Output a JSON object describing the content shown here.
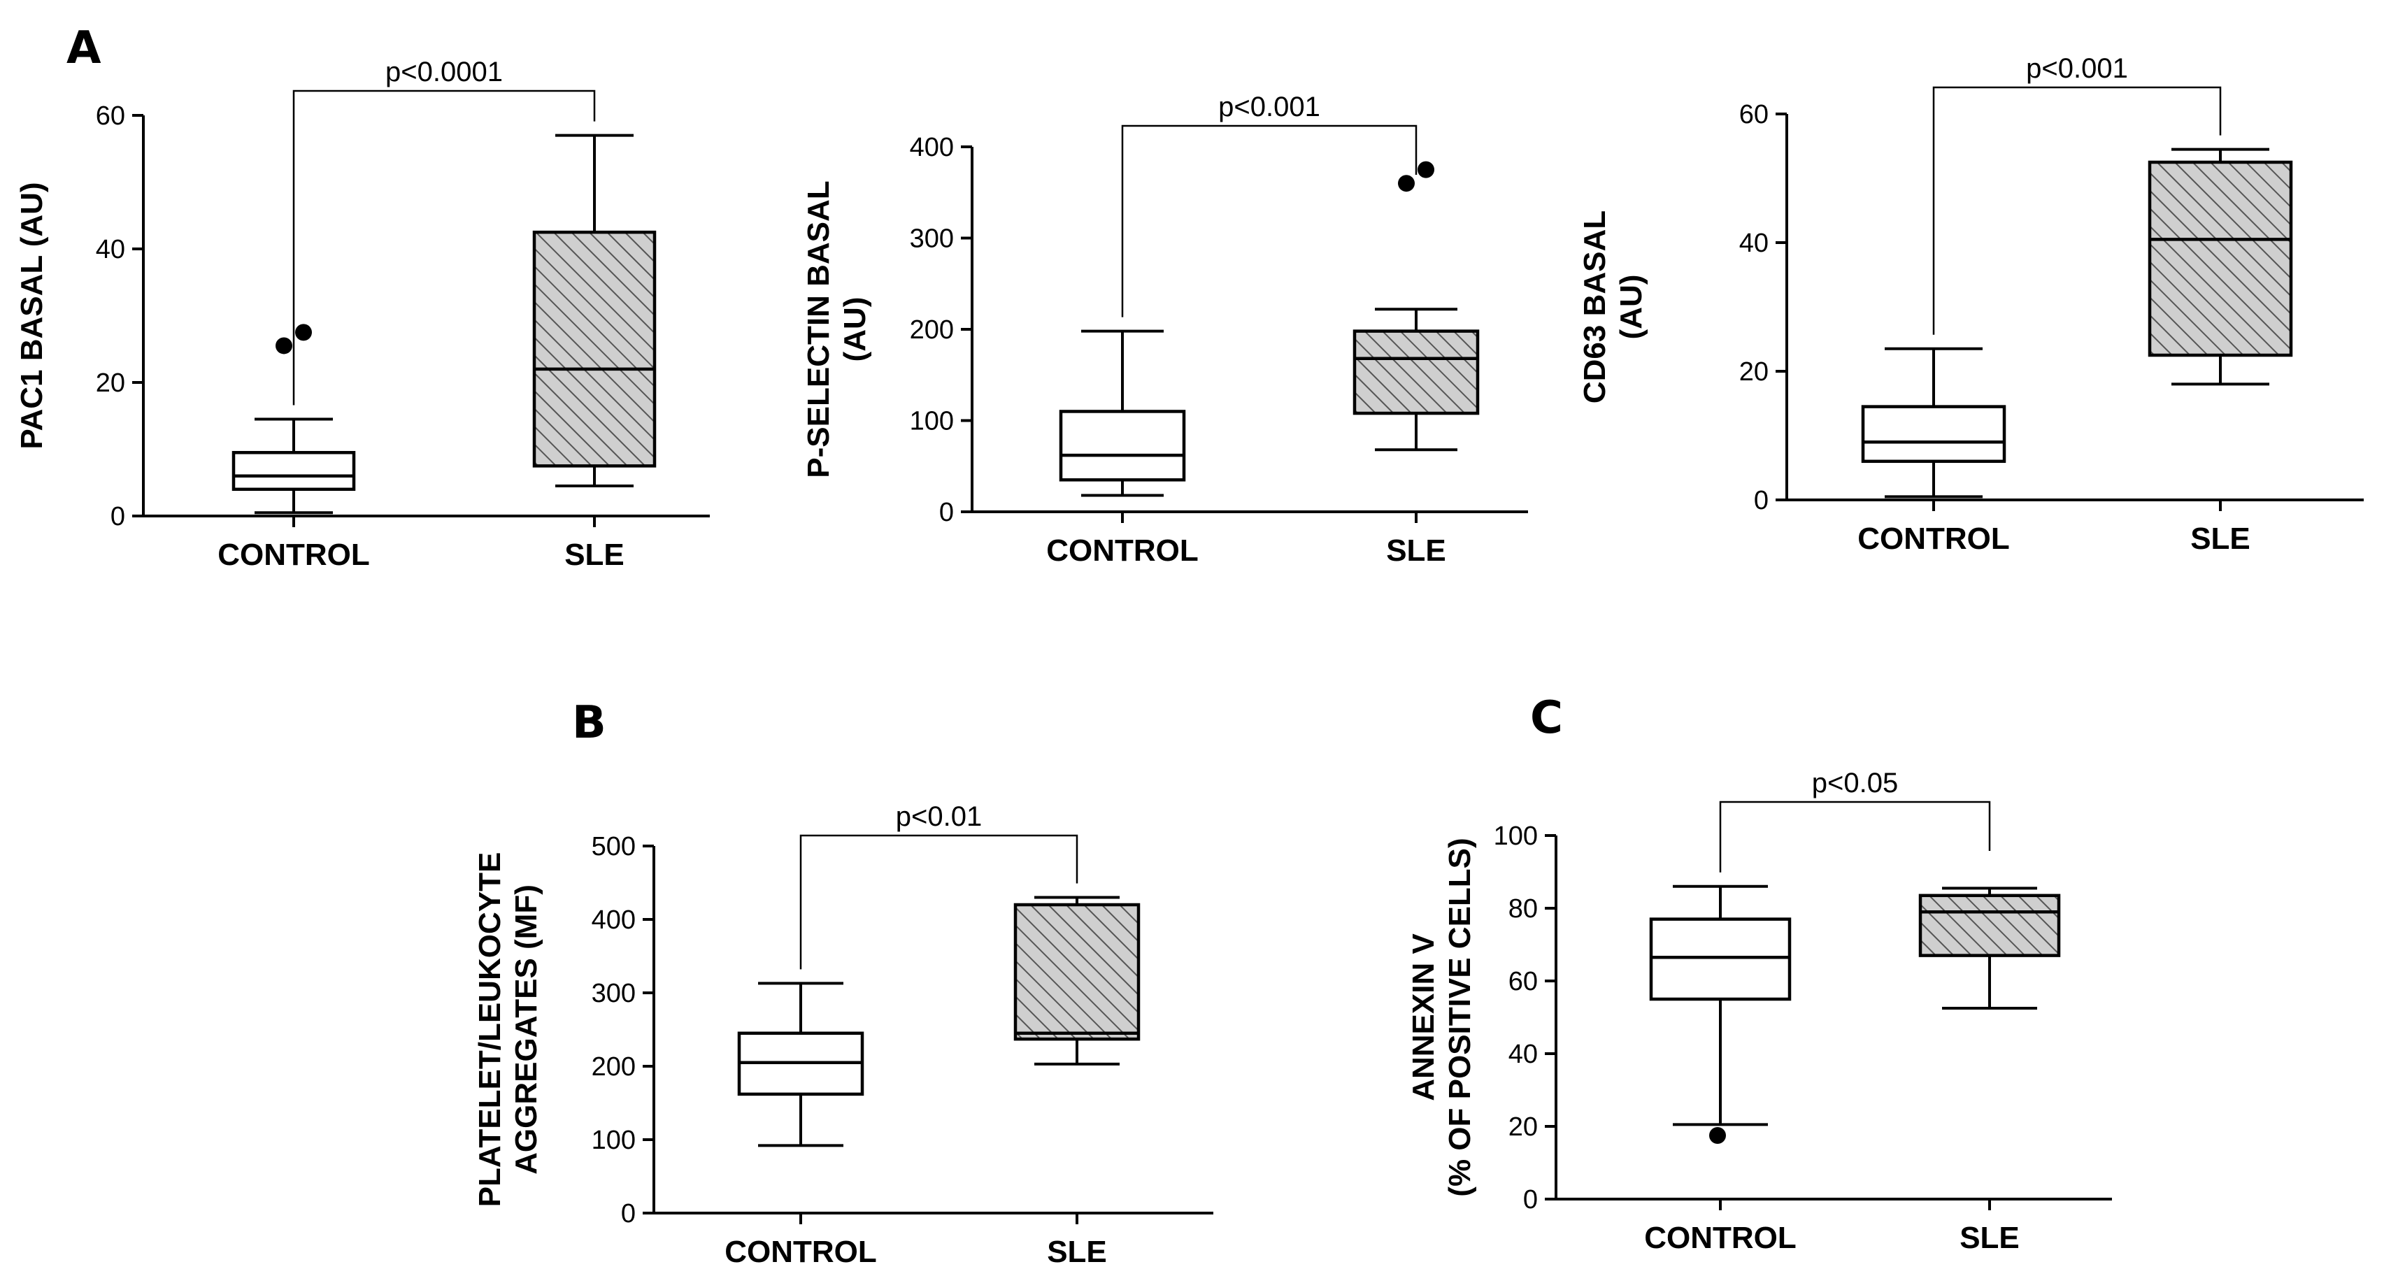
{
  "colors": {
    "axis": "#000000",
    "control_fill": "#ffffff",
    "sle_fill": "#cfcfcf",
    "hatch": "#555555"
  },
  "chart_data": [
    {
      "type": "box",
      "panel_letter": "A",
      "ylabel": [
        "PAC1 BASAL (AU)"
      ],
      "categories": [
        "CONTROL",
        "SLE"
      ],
      "ylim": [
        0,
        60
      ],
      "yticks": [
        0,
        20,
        40,
        60
      ],
      "p_value": "p<0.0001",
      "series": [
        {
          "name": "CONTROL",
          "min": 0.5,
          "q1": 4,
          "median": 6,
          "q3": 9.5,
          "max": 14.5,
          "outliers": [
            25.5,
            27.5
          ],
          "fill": "plain"
        },
        {
          "name": "SLE",
          "min": 4.5,
          "q1": 7.5,
          "median": 22,
          "q3": 42.5,
          "max": 57,
          "outliers": [],
          "fill": "hatched"
        }
      ]
    },
    {
      "type": "box",
      "panel_letter": "",
      "ylabel": [
        "P-SELECTIN BASAL",
        "(AU)"
      ],
      "categories": [
        "CONTROL",
        "SLE"
      ],
      "ylim": [
        0,
        400
      ],
      "yticks": [
        0,
        100,
        200,
        300,
        400
      ],
      "p_value": "p<0.001",
      "series": [
        {
          "name": "CONTROL",
          "min": 18,
          "q1": 35,
          "median": 62,
          "q3": 110,
          "max": 198,
          "outliers": [],
          "fill": "plain"
        },
        {
          "name": "SLE",
          "min": 68,
          "q1": 108,
          "median": 168,
          "q3": 198,
          "max": 222,
          "outliers": [
            360,
            375
          ],
          "fill": "hatched"
        }
      ]
    },
    {
      "type": "box",
      "panel_letter": "",
      "ylabel": [
        "CD63 BASAL",
        "(AU)"
      ],
      "categories": [
        "CONTROL",
        "SLE"
      ],
      "ylim": [
        0,
        60
      ],
      "yticks": [
        0,
        20,
        40,
        60
      ],
      "p_value": "p<0.001",
      "series": [
        {
          "name": "CONTROL",
          "min": 0.5,
          "q1": 6,
          "median": 9,
          "q3": 14.5,
          "max": 23.5,
          "outliers": [],
          "fill": "plain"
        },
        {
          "name": "SLE",
          "min": 18,
          "q1": 22.5,
          "median": 40.5,
          "q3": 52.5,
          "max": 54.5,
          "outliers": [],
          "fill": "hatched"
        }
      ]
    },
    {
      "type": "box",
      "panel_letter": "B",
      "ylabel": [
        "PLATELET/LEUKOCYTE",
        "AGGREGATES (MF)"
      ],
      "categories": [
        "CONTROL",
        "SLE"
      ],
      "ylim": [
        0,
        500
      ],
      "yticks": [
        0,
        100,
        200,
        300,
        400,
        500
      ],
      "p_value": "p<0.01",
      "series": [
        {
          "name": "CONTROL",
          "min": 92,
          "q1": 162,
          "median": 205,
          "q3": 245,
          "max": 313,
          "outliers": [],
          "fill": "plain"
        },
        {
          "name": "SLE",
          "min": 203,
          "q1": 237,
          "median": 245,
          "q3": 420,
          "max": 430,
          "outliers": [],
          "fill": "hatched"
        }
      ]
    },
    {
      "type": "box",
      "panel_letter": "C",
      "ylabel": [
        "ANNEXIN V",
        "(% OF POSITIVE CELLS)"
      ],
      "categories": [
        "CONTROL",
        "SLE"
      ],
      "ylim": [
        0,
        100
      ],
      "yticks": [
        0,
        20,
        40,
        60,
        80,
        100
      ],
      "p_value": "p<0.05",
      "series": [
        {
          "name": "CONTROL",
          "min": 20.5,
          "q1": 55,
          "median": 66.5,
          "q3": 77,
          "max": 86,
          "outliers": [
            17.5
          ],
          "fill": "plain"
        },
        {
          "name": "SLE",
          "min": 52.5,
          "q1": 67,
          "median": 79,
          "q3": 83.5,
          "max": 85.5,
          "outliers": [],
          "fill": "hatched"
        }
      ]
    }
  ]
}
